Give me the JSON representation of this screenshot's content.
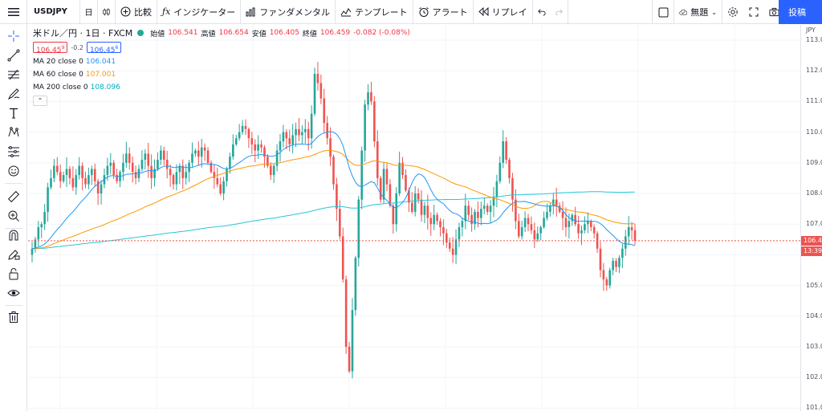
{
  "toolbar": {
    "symbol": "USDJPY",
    "compare": "比較",
    "indicators": "インジケーター",
    "fundamental": "ファンダメンタル",
    "templates": "テンプレート",
    "alert": "アラート",
    "replay": "リプレイ",
    "unnamed": "無題",
    "publish": "投稿"
  },
  "legend": {
    "title": "米ドル／円 · 1日 · FXCM",
    "open_label": "始値",
    "open": "106.541",
    "high_label": "高値",
    "high": "106.654",
    "low_label": "安値",
    "low": "106.405",
    "close_label": "終値",
    "close": "106.459",
    "change": "-0.082 (-0.08%)",
    "bid": "106.45",
    "bid_sup": "9",
    "spread": "-0.2",
    "ask": "106.45",
    "ask_sup": "6",
    "ma20_label": "MA 20 close 0",
    "ma20_value": "106.041",
    "ma60_label": "MA 60 close 0",
    "ma60_value": "107.001",
    "ma200_label": "MA 200 close 0",
    "ma200_value": "108.096"
  },
  "price_axis": {
    "currency": "JPY",
    "ticks": [
      "113.0",
      "112.0",
      "111.0",
      "110.0",
      "109.0",
      "108.0",
      "107.0",
      "106.0",
      "105.0",
      "104.0",
      "103.0",
      "102.0",
      "101.0"
    ],
    "current_price": "106.4",
    "countdown": "13:39:"
  },
  "colors": {
    "up": "#26a69a",
    "down": "#ef5350",
    "ma20": "#2196f3",
    "ma60": "#ff9800",
    "ma200": "#26c6da",
    "price_line": "#ef5350",
    "accent": "#2962ff"
  },
  "chart_data": {
    "type": "candlestick",
    "ylim": [
      101.0,
      113.0
    ],
    "last_price": 106.459,
    "closes": [
      106.2,
      106.5,
      106.9,
      107.0,
      107.4,
      108.2,
      108.5,
      108.9,
      108.7,
      108.4,
      108.6,
      108.8,
      108.5,
      108.2,
      108.6,
      108.9,
      108.5,
      108.3,
      108.6,
      108.8,
      108.4,
      108.0,
      108.3,
      108.6,
      108.9,
      109.0,
      108.6,
      108.4,
      108.7,
      109.0,
      109.3,
      109.0,
      108.7,
      108.5,
      108.8,
      109.1,
      109.3,
      108.9,
      108.5,
      108.8,
      109.1,
      109.4,
      109.1,
      108.8,
      108.6,
      108.3,
      108.7,
      108.9,
      108.5,
      108.7,
      109.0,
      109.3,
      109.4,
      109.2,
      109.5,
      109.4,
      109.0,
      108.7,
      108.5,
      108.3,
      108.0,
      108.4,
      108.8,
      109.2,
      109.6,
      109.8,
      110.0,
      110.2,
      110.1,
      109.8,
      109.6,
      109.4,
      109.6,
      109.5,
      109.2,
      108.9,
      108.6,
      108.9,
      109.4,
      109.7,
      110.0,
      109.8,
      109.6,
      109.9,
      110.1,
      109.9,
      110.0,
      110.1,
      109.8,
      110.6,
      111.9,
      111.6,
      111.1,
      110.3,
      109.8,
      109.2,
      108.3,
      107.5,
      106.6,
      105.2,
      103.0,
      102.2,
      104.2,
      105.9,
      107.8,
      109.4,
      110.9,
      111.3,
      111.0,
      109.7,
      108.5,
      107.8,
      108.8,
      108.3,
      107.6,
      107.0,
      108.0,
      109.0,
      108.6,
      108.1,
      107.7,
      107.4,
      108.0,
      107.8,
      107.3,
      107.6,
      107.2,
      107.0,
      107.3,
      107.1,
      106.9,
      106.7,
      106.4,
      106.2,
      106.0,
      106.5,
      106.9,
      107.1,
      107.6,
      107.3,
      107.0,
      107.4,
      107.2,
      107.5,
      107.6,
      107.4,
      107.6,
      107.9,
      108.4,
      109.0,
      109.7,
      109.1,
      108.5,
      107.8,
      107.1,
      106.6,
      106.9,
      107.2,
      107.0,
      106.8,
      106.5,
      106.7,
      106.9,
      107.2,
      107.4,
      107.6,
      107.8,
      107.6,
      107.4,
      107.2,
      106.9,
      107.1,
      107.3,
      107.0,
      106.7,
      106.8,
      107.0,
      107.1,
      106.9,
      106.7,
      106.2,
      105.5,
      105.2,
      105.0,
      105.5,
      105.8,
      105.6,
      105.9,
      106.2,
      106.6,
      106.9,
      106.8,
      106.459
    ]
  }
}
